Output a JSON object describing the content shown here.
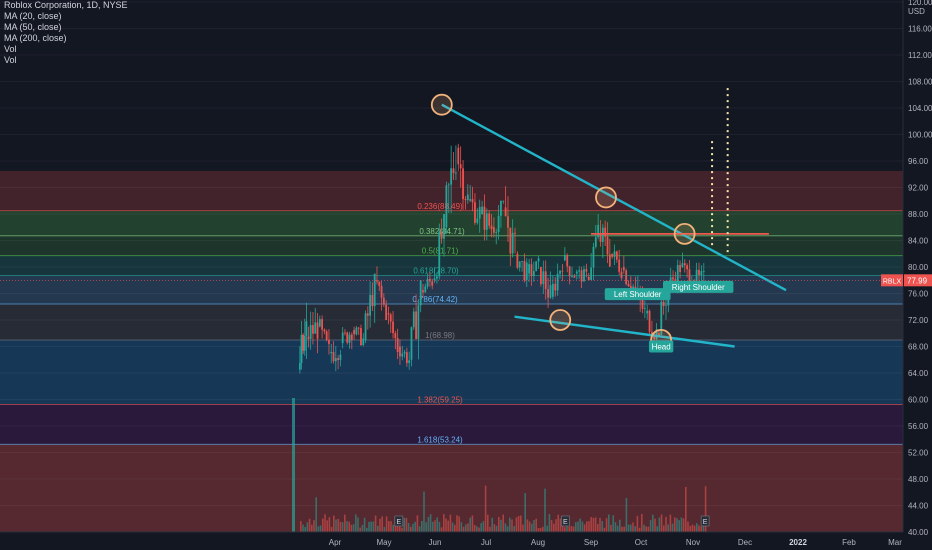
{
  "legend": {
    "title": "Roblox Corporation, 1D, NYSE",
    "lines": [
      "MA (20, close)",
      "MA (50, close)",
      "MA (200, close)",
      "Vol",
      "Vol"
    ]
  },
  "price_tag": {
    "symbol": "RBLX",
    "value": "77.99"
  },
  "currency": "USD",
  "colors": {
    "background": "#131722",
    "up": "#26a69a",
    "down": "#ef5350",
    "trendline": "#22b4c8",
    "resistance": "#f0574f",
    "circle": "#f2b37b"
  },
  "chart_data": {
    "type": "candlestick",
    "y_axis": {
      "ticks": [
        120,
        116,
        112,
        108,
        104,
        100,
        96,
        92,
        88,
        84,
        80,
        76,
        72,
        68,
        64,
        60,
        56,
        52,
        48,
        44,
        40
      ],
      "range": [
        40,
        120
      ]
    },
    "x_axis": {
      "ticks": [
        "Apr",
        "May",
        "Jun",
        "Jul",
        "Aug",
        "Sep",
        "Oct",
        "Nov",
        "Dec",
        "2022",
        "Feb",
        "Mar"
      ],
      "bold_ticks": [
        "2022"
      ]
    },
    "fib_levels": [
      {
        "label": "0.236(88.49)",
        "value": 88.49,
        "color": "#ef5350"
      },
      {
        "label": "0.382(84.71)",
        "value": 84.71,
        "color": "#81c784"
      },
      {
        "label": "0.5(81.71)",
        "value": 81.71,
        "color": "#4caf50"
      },
      {
        "label": "0.618(78.70)",
        "value": 78.7,
        "color": "#26a69a"
      },
      {
        "label": "0.786(74.42)",
        "value": 74.42,
        "color": "#64b5f6"
      },
      {
        "label": "1(68.98)",
        "value": 68.98,
        "color": "#787b86"
      },
      {
        "label": "1.382(59.25)",
        "value": 59.25,
        "color": "#ef5350"
      },
      {
        "label": "1.618(53.24)",
        "value": 53.24,
        "color": "#64b5f6"
      }
    ],
    "annotations": [
      "Left Shoulder",
      "Head",
      "Right Shoulder"
    ],
    "events": [
      "E",
      "E",
      "E"
    ],
    "price_series": [
      [
        "2021-03-10",
        64.5,
        74.9,
        59.0,
        69.5
      ],
      [
        "2021-03-15",
        69.5,
        75.0,
        66.0,
        71.0
      ],
      [
        "2021-03-22",
        71.0,
        73.5,
        65.5,
        67.0
      ],
      [
        "2021-03-29",
        67.0,
        70.5,
        61.5,
        68.5
      ],
      [
        "2021-04-05",
        68.5,
        72.0,
        66.0,
        70.5
      ],
      [
        "2021-04-12",
        70.5,
        73.0,
        68.0,
        69.0
      ],
      [
        "2021-04-19",
        69.0,
        79.0,
        68.5,
        78.0
      ],
      [
        "2021-04-26",
        78.0,
        81.0,
        72.0,
        73.0
      ],
      [
        "2021-05-03",
        73.0,
        74.0,
        66.0,
        68.0
      ],
      [
        "2021-05-10",
        68.0,
        69.5,
        64.0,
        66.0
      ],
      [
        "2021-05-17",
        66.0,
        78.0,
        65.0,
        76.5
      ],
      [
        "2021-05-24",
        76.5,
        80.0,
        74.0,
        78.0
      ],
      [
        "2021-05-31",
        78.0,
        88.0,
        77.0,
        86.0
      ],
      [
        "2021-06-07",
        86.0,
        103.9,
        85.0,
        98.0
      ],
      [
        "2021-06-14",
        98.0,
        100.0,
        88.0,
        90.0
      ],
      [
        "2021-06-21",
        90.0,
        94.0,
        85.0,
        88.0
      ],
      [
        "2021-06-28",
        88.0,
        92.0,
        84.0,
        86.0
      ],
      [
        "2021-07-05",
        86.0,
        90.0,
        82.0,
        89.0
      ],
      [
        "2021-07-12",
        89.0,
        93.0,
        80.0,
        82.0
      ],
      [
        "2021-07-19",
        82.0,
        84.0,
        77.0,
        79.0
      ],
      [
        "2021-07-26",
        79.0,
        82.0,
        76.0,
        80.0
      ],
      [
        "2021-08-02",
        80.0,
        81.0,
        72.5,
        75.5
      ],
      [
        "2021-08-09",
        75.5,
        82.0,
        75.0,
        81.0
      ],
      [
        "2021-08-16",
        81.0,
        83.0,
        77.0,
        79.0
      ],
      [
        "2021-08-23",
        79.0,
        80.5,
        76.0,
        78.5
      ],
      [
        "2021-08-30",
        78.5,
        88.0,
        78.0,
        85.0
      ],
      [
        "2021-09-06",
        85.0,
        90.5,
        80.0,
        82.0
      ],
      [
        "2021-09-13",
        82.0,
        85.0,
        78.0,
        80.0
      ],
      [
        "2021-09-20",
        80.0,
        82.0,
        75.0,
        77.0
      ],
      [
        "2021-09-27",
        77.0,
        79.0,
        71.0,
        73.0
      ],
      [
        "2021-10-04",
        73.0,
        76.0,
        68.5,
        70.0
      ],
      [
        "2021-10-11",
        70.0,
        78.5,
        69.5,
        77.0
      ],
      [
        "2021-10-18",
        77.0,
        82.0,
        76.0,
        80.0
      ],
      [
        "2021-10-25",
        80.0,
        84.5,
        77.5,
        78.0
      ],
      [
        "2021-11-01",
        78.0,
        83.5,
        77.0,
        77.99
      ]
    ]
  }
}
